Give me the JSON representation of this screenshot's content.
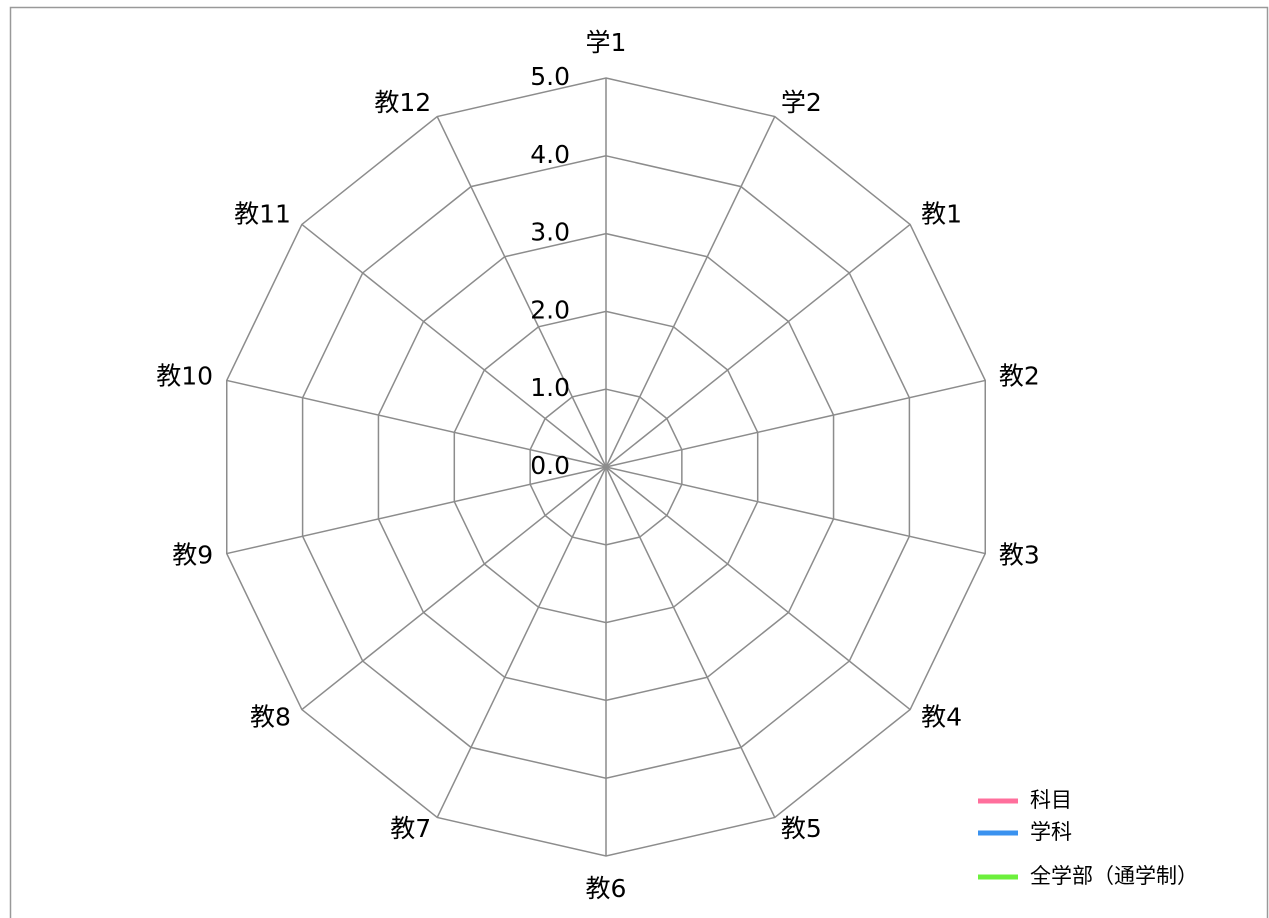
{
  "chart_data": {
    "type": "radar",
    "categories": [
      "学1",
      "学2",
      "教1",
      "教2",
      "教3",
      "教4",
      "教5",
      "教6",
      "教7",
      "教8",
      "教9",
      "教10",
      "教11",
      "教12"
    ],
    "series": [
      {
        "name": "科目",
        "color": "#ff6f9c",
        "values": [
          null,
          null,
          null,
          null,
          null,
          null,
          null,
          null,
          null,
          null,
          null,
          null,
          null,
          null
        ]
      },
      {
        "name": "学科",
        "color": "#3a92ef",
        "values": [
          null,
          null,
          null,
          null,
          null,
          null,
          null,
          null,
          null,
          null,
          null,
          null,
          null,
          null
        ]
      },
      {
        "name": "全学部（通学制）",
        "color": "#6cf03c",
        "values": [
          null,
          null,
          null,
          null,
          null,
          null,
          null,
          null,
          null,
          null,
          null,
          null,
          null,
          null
        ]
      }
    ],
    "ylim": [
      0,
      5
    ],
    "yticks": [
      {
        "value": 0,
        "label": "0.0"
      },
      {
        "value": 1,
        "label": "1.0"
      },
      {
        "value": 2,
        "label": "2.0"
      },
      {
        "value": 3,
        "label": "3.0"
      },
      {
        "value": 4,
        "label": "4.0"
      },
      {
        "value": 5,
        "label": "5.0"
      }
    ],
    "grid": true,
    "legend": "bottom-right"
  }
}
